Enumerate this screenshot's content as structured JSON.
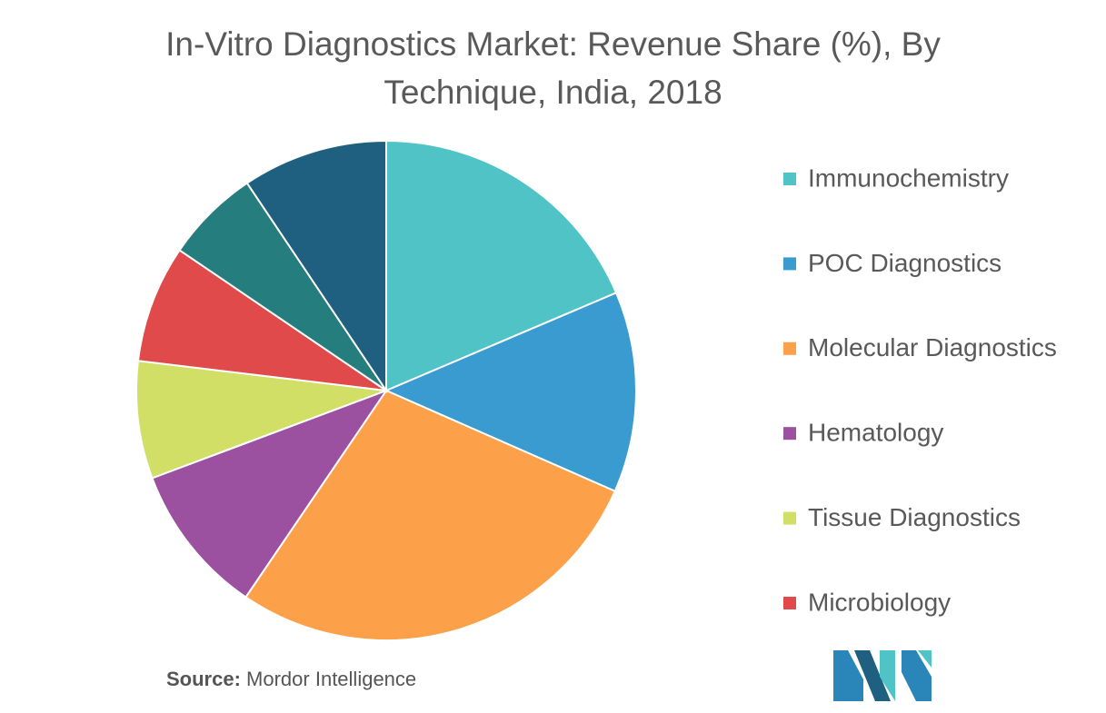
{
  "chart_data": {
    "type": "pie",
    "title": "In-Vitro Diagnostics Market: Revenue Share (%), By Technique, India, 2018",
    "categories": [
      "Immunochemistry",
      "POC Diagnostics",
      "Molecular Diagnostics",
      "Hematology",
      "Tissue Diagnostics",
      "Microbiology",
      null,
      null
    ],
    "values": [
      18.6,
      13.0,
      27.9,
      9.8,
      7.6,
      7.6,
      6.1,
      9.4
    ],
    "colors": [
      "#4fc3c6",
      "#3a9bd0",
      "#fca04a",
      "#9b50a0",
      "#d1df66",
      "#e04a4a",
      "#267d7d",
      "#1f5f80"
    ],
    "legend": "right",
    "source_label": "Source:",
    "source": "Mordor Intelligence"
  }
}
